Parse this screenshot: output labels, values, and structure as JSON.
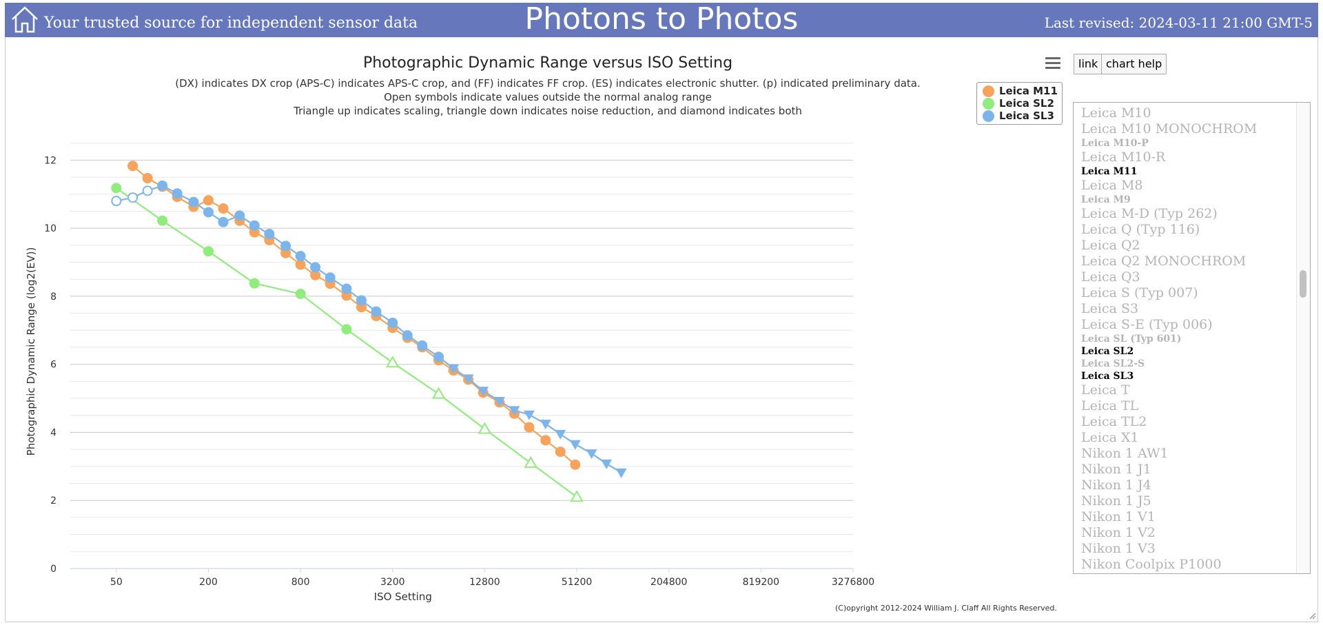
{
  "header": {
    "tagline": "Your trusted source for independent sensor data",
    "site_title": "Photons to Photos",
    "last_revised": "Last revised: 2024-03-11 21:00 GMT-5",
    "home_icon": "home-icon",
    "background_color": "#6677bb"
  },
  "toolbar": {
    "menu_icon": "hamburger-menu-icon",
    "link_label": "link",
    "chart_help_label": "chart help"
  },
  "legend": {
    "items": [
      {
        "label": "Leica M11",
        "color": "#f7a35c"
      },
      {
        "label": "Leica SL2",
        "color": "#90ed7d"
      },
      {
        "label": "Leica SL3",
        "color": "#7cb5ec"
      }
    ]
  },
  "camera_list": {
    "items": [
      {
        "label": "Leica M10",
        "selected": false,
        "small": false
      },
      {
        "label": "Leica M10 MONOCHROM",
        "selected": false,
        "small": false
      },
      {
        "label": "Leica M10-P",
        "selected": false,
        "small": true
      },
      {
        "label": "Leica M10-R",
        "selected": false,
        "small": false
      },
      {
        "label": "Leica M11",
        "selected": true,
        "small": true
      },
      {
        "label": "Leica M8",
        "selected": false,
        "small": false
      },
      {
        "label": "Leica M9",
        "selected": false,
        "small": true
      },
      {
        "label": "Leica M-D (Typ 262)",
        "selected": false,
        "small": false
      },
      {
        "label": "Leica Q (Typ 116)",
        "selected": false,
        "small": false
      },
      {
        "label": "Leica Q2",
        "selected": false,
        "small": false
      },
      {
        "label": "Leica Q2 MONOCHROM",
        "selected": false,
        "small": false
      },
      {
        "label": "Leica Q3",
        "selected": false,
        "small": false
      },
      {
        "label": "Leica S (Typ 007)",
        "selected": false,
        "small": false
      },
      {
        "label": "Leica S3",
        "selected": false,
        "small": false
      },
      {
        "label": "Leica S-E (Typ 006)",
        "selected": false,
        "small": false
      },
      {
        "label": "Leica SL (Typ 601)",
        "selected": false,
        "small": true
      },
      {
        "label": "Leica SL2",
        "selected": true,
        "small": true
      },
      {
        "label": "Leica SL2-S",
        "selected": false,
        "small": true
      },
      {
        "label": "Leica SL3",
        "selected": true,
        "small": true
      },
      {
        "label": "Leica T",
        "selected": false,
        "small": false
      },
      {
        "label": "Leica TL",
        "selected": false,
        "small": false
      },
      {
        "label": "Leica TL2",
        "selected": false,
        "small": false
      },
      {
        "label": "Leica X1",
        "selected": false,
        "small": false
      },
      {
        "label": "Nikon 1 AW1",
        "selected": false,
        "small": false
      },
      {
        "label": "Nikon 1 J1",
        "selected": false,
        "small": false
      },
      {
        "label": "Nikon 1 J4",
        "selected": false,
        "small": false
      },
      {
        "label": "Nikon 1 J5",
        "selected": false,
        "small": false
      },
      {
        "label": "Nikon 1 V1",
        "selected": false,
        "small": false
      },
      {
        "label": "Nikon 1 V2",
        "selected": false,
        "small": false
      },
      {
        "label": "Nikon 1 V3",
        "selected": false,
        "small": false
      },
      {
        "label": "Nikon Coolpix P1000",
        "selected": false,
        "small": false
      }
    ]
  },
  "copyright": "(C)opyright 2012-2024 William J. Claff All Rights Reserved.",
  "chart_data": {
    "type": "line",
    "title": "Photographic Dynamic Range versus ISO Setting",
    "subtitle": [
      "(DX) indicates DX crop (APS-C) indicates APS-C crop, and (FF) indicates FF crop. (ES) indicates electronic shutter. (p) indicated preliminary data.",
      "Open symbols indicate values outside the normal analog range",
      "Triangle up indicates scaling, triangle down indicates noise reduction, and diamond indicates both"
    ],
    "xlabel": "ISO Setting",
    "ylabel": "Photographic Dynamic Range (log2(EV))",
    "x_scale": "log",
    "x_ticks": [
      50,
      200,
      800,
      3200,
      12800,
      51200,
      204800,
      819200,
      3276800
    ],
    "x_tick_labels": [
      "50",
      "200",
      "800",
      "3200",
      "12800",
      "51200",
      "204800",
      "819200",
      "3276800"
    ],
    "xlim": [
      25,
      3276800
    ],
    "y_ticks": [
      0,
      2,
      4,
      6,
      8,
      10,
      12
    ],
    "y_tick_labels": [
      "0",
      "2",
      "4",
      "6",
      "8",
      "10",
      "12"
    ],
    "ylim": [
      0,
      13
    ],
    "grid": true,
    "legend_position": "top-right",
    "series": [
      {
        "name": "Leica M11",
        "color": "#f7a35c",
        "points": [
          {
            "x": 64,
            "y": 11.83,
            "m": "circle"
          },
          {
            "x": 80,
            "y": 11.47,
            "m": "circle"
          },
          {
            "x": 100,
            "y": 11.22,
            "m": "circle"
          },
          {
            "x": 125,
            "y": 10.92,
            "m": "circle"
          },
          {
            "x": 160,
            "y": 10.63,
            "m": "circle"
          },
          {
            "x": 200,
            "y": 10.82,
            "m": "circle"
          },
          {
            "x": 250,
            "y": 10.58,
            "m": "circle"
          },
          {
            "x": 320,
            "y": 10.22,
            "m": "circle"
          },
          {
            "x": 400,
            "y": 9.88,
            "m": "circle"
          },
          {
            "x": 500,
            "y": 9.65,
            "m": "circle"
          },
          {
            "x": 640,
            "y": 9.27,
            "m": "circle"
          },
          {
            "x": 800,
            "y": 8.93,
            "m": "circle"
          },
          {
            "x": 1000,
            "y": 8.62,
            "m": "circle"
          },
          {
            "x": 1250,
            "y": 8.37,
            "m": "circle"
          },
          {
            "x": 1600,
            "y": 8.02,
            "m": "circle"
          },
          {
            "x": 2000,
            "y": 7.68,
            "m": "circle"
          },
          {
            "x": 2500,
            "y": 7.42,
            "m": "circle"
          },
          {
            "x": 3200,
            "y": 7.07,
            "m": "circle"
          },
          {
            "x": 4000,
            "y": 6.78,
            "m": "circle"
          },
          {
            "x": 5000,
            "y": 6.5,
            "m": "circle"
          },
          {
            "x": 6400,
            "y": 6.12,
            "m": "circle"
          },
          {
            "x": 8000,
            "y": 5.82,
            "m": "circle"
          },
          {
            "x": 10000,
            "y": 5.55,
            "m": "circle"
          },
          {
            "x": 12500,
            "y": 5.17,
            "m": "circle"
          },
          {
            "x": 16000,
            "y": 4.88,
            "m": "circle"
          },
          {
            "x": 20000,
            "y": 4.55,
            "m": "circle"
          },
          {
            "x": 25000,
            "y": 4.15,
            "m": "circle"
          },
          {
            "x": 32000,
            "y": 3.77,
            "m": "circle"
          },
          {
            "x": 40000,
            "y": 3.43,
            "m": "circle"
          },
          {
            "x": 50000,
            "y": 3.05,
            "m": "circle"
          }
        ]
      },
      {
        "name": "Leica SL2",
        "color": "#90ed7d",
        "points": [
          {
            "x": 50,
            "y": 11.18,
            "m": "circle"
          },
          {
            "x": 100,
            "y": 10.22,
            "m": "circle"
          },
          {
            "x": 200,
            "y": 9.32,
            "m": "circle"
          },
          {
            "x": 400,
            "y": 8.38,
            "m": "circle"
          },
          {
            "x": 800,
            "y": 8.07,
            "m": "circle"
          },
          {
            "x": 1600,
            "y": 7.03,
            "m": "circle"
          },
          {
            "x": 3200,
            "y": 6.05,
            "m": "triangle-up-open"
          },
          {
            "x": 6400,
            "y": 5.13,
            "m": "triangle-up-open"
          },
          {
            "x": 12800,
            "y": 4.1,
            "m": "triangle-up-open"
          },
          {
            "x": 25600,
            "y": 3.1,
            "m": "triangle-up-open"
          },
          {
            "x": 51200,
            "y": 2.1,
            "m": "triangle-up-open"
          }
        ]
      },
      {
        "name": "Leica SL3",
        "color": "#7cb5ec",
        "points": [
          {
            "x": 50,
            "y": 10.8,
            "m": "circle-open"
          },
          {
            "x": 64,
            "y": 10.9,
            "m": "circle-open"
          },
          {
            "x": 80,
            "y": 11.1,
            "m": "circle-open"
          },
          {
            "x": 100,
            "y": 11.25,
            "m": "circle"
          },
          {
            "x": 125,
            "y": 11.02,
            "m": "circle"
          },
          {
            "x": 160,
            "y": 10.77,
            "m": "circle"
          },
          {
            "x": 200,
            "y": 10.47,
            "m": "circle"
          },
          {
            "x": 250,
            "y": 10.18,
            "m": "circle"
          },
          {
            "x": 320,
            "y": 10.37,
            "m": "circle"
          },
          {
            "x": 400,
            "y": 10.08,
            "m": "circle"
          },
          {
            "x": 500,
            "y": 9.83,
            "m": "circle"
          },
          {
            "x": 640,
            "y": 9.48,
            "m": "circle"
          },
          {
            "x": 800,
            "y": 9.18,
            "m": "circle"
          },
          {
            "x": 1000,
            "y": 8.85,
            "m": "circle"
          },
          {
            "x": 1250,
            "y": 8.55,
            "m": "circle"
          },
          {
            "x": 1600,
            "y": 8.22,
            "m": "circle"
          },
          {
            "x": 2000,
            "y": 7.88,
            "m": "circle"
          },
          {
            "x": 2500,
            "y": 7.55,
            "m": "circle"
          },
          {
            "x": 3200,
            "y": 7.22,
            "m": "circle"
          },
          {
            "x": 4000,
            "y": 6.85,
            "m": "circle"
          },
          {
            "x": 5000,
            "y": 6.55,
            "m": "circle"
          },
          {
            "x": 6400,
            "y": 6.22,
            "m": "circle"
          },
          {
            "x": 8000,
            "y": 5.88,
            "m": "triangle-down"
          },
          {
            "x": 10000,
            "y": 5.58,
            "m": "triangle-down"
          },
          {
            "x": 12500,
            "y": 5.22,
            "m": "triangle-down"
          },
          {
            "x": 16000,
            "y": 4.92,
            "m": "triangle-down"
          },
          {
            "x": 20000,
            "y": 4.65,
            "m": "triangle-down"
          },
          {
            "x": 25000,
            "y": 4.52,
            "m": "triangle-down"
          },
          {
            "x": 32000,
            "y": 4.25,
            "m": "triangle-down"
          },
          {
            "x": 40000,
            "y": 3.95,
            "m": "triangle-down"
          },
          {
            "x": 50000,
            "y": 3.65,
            "m": "triangle-down"
          },
          {
            "x": 64000,
            "y": 3.38,
            "m": "triangle-down"
          },
          {
            "x": 80000,
            "y": 3.08,
            "m": "triangle-down"
          },
          {
            "x": 100000,
            "y": 2.82,
            "m": "triangle-down"
          }
        ]
      }
    ]
  }
}
